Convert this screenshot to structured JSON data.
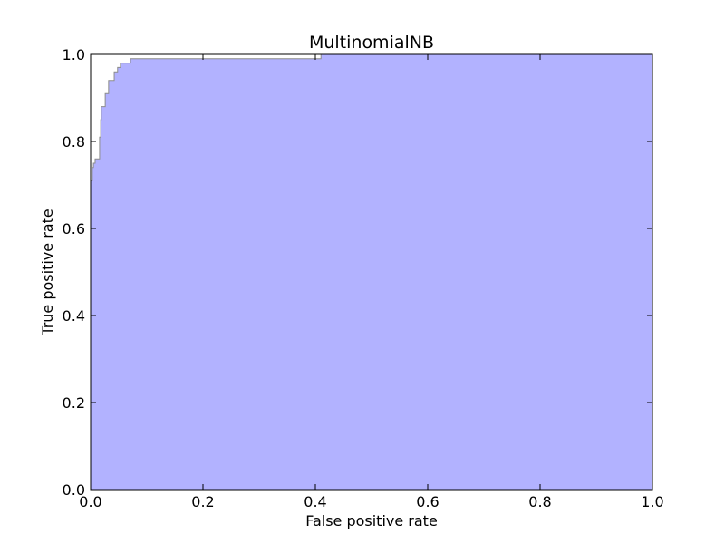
{
  "chart_data": {
    "type": "area",
    "title": "MultinomialNB",
    "xlabel": "False positive rate",
    "ylabel": "True positive rate",
    "xlim": [
      0,
      1
    ],
    "ylim": [
      0,
      1
    ],
    "grid": false,
    "fill_color": "#b2b2ff",
    "edge_color": "#8c8c8c",
    "x_ticks": [
      0.0,
      0.2,
      0.4,
      0.6,
      0.8,
      1.0
    ],
    "y_ticks": [
      0.0,
      0.2,
      0.4,
      0.6,
      0.8,
      1.0
    ],
    "x_tick_labels": [
      "0.0",
      "0.2",
      "0.4",
      "0.6",
      "0.8",
      "1.0"
    ],
    "y_tick_labels": [
      "0.0",
      "0.2",
      "0.4",
      "0.6",
      "0.8",
      "1.0"
    ],
    "series": [
      {
        "x": [
          0.0,
          0.0,
          0.003,
          0.003,
          0.005,
          0.005,
          0.008,
          0.008,
          0.016,
          0.016,
          0.018,
          0.018,
          0.019,
          0.019,
          0.021,
          0.021,
          0.026,
          0.026,
          0.032,
          0.032,
          0.042,
          0.042,
          0.048,
          0.048,
          0.053,
          0.053,
          0.058,
          0.058,
          0.071,
          0.071,
          0.403,
          0.403,
          0.41,
          0.41,
          1.0
        ],
        "y": [
          0.0,
          0.71,
          0.71,
          0.74,
          0.74,
          0.75,
          0.75,
          0.76,
          0.76,
          0.81,
          0.81,
          0.85,
          0.85,
          0.88,
          0.88,
          0.88,
          0.88,
          0.91,
          0.91,
          0.94,
          0.94,
          0.96,
          0.96,
          0.97,
          0.97,
          0.98,
          0.98,
          0.98,
          0.98,
          0.99,
          0.99,
          0.99,
          0.99,
          1.0,
          1.0
        ]
      }
    ]
  }
}
